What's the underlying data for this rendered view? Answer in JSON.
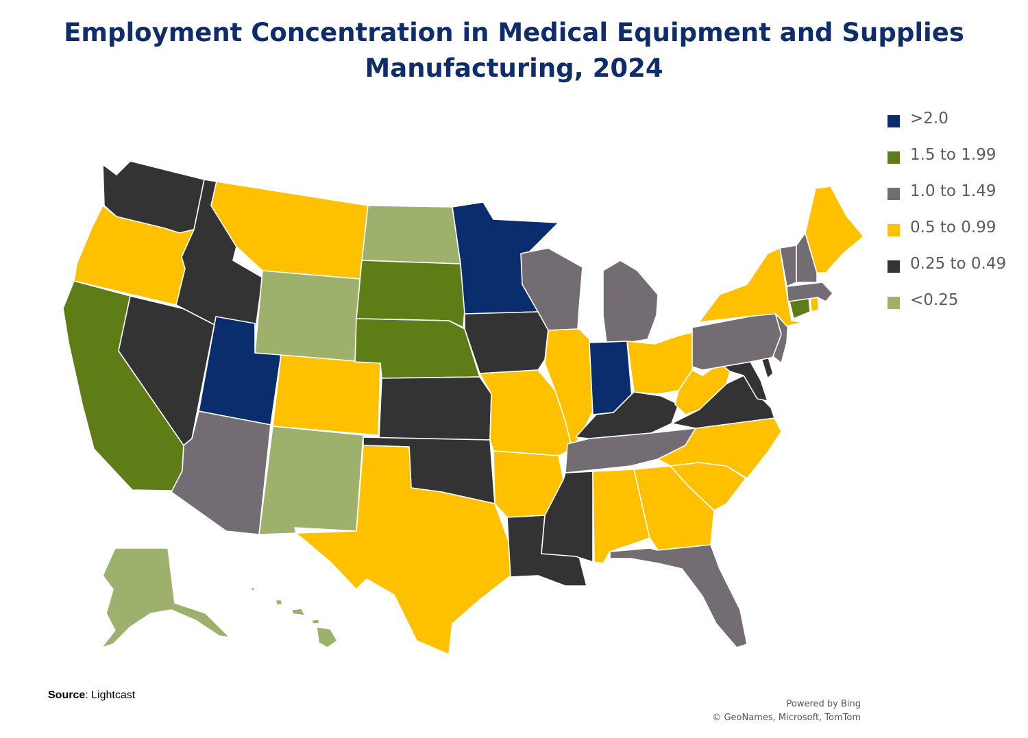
{
  "title_line1": "Employment Concentration in Medical Equipment and Supplies",
  "title_line2": "Manufacturing, 2024",
  "legend": [
    {
      "label": ">2.0",
      "color": "#0a2d6e",
      "category": "gt2"
    },
    {
      "label": "1.5 to 1.99",
      "color": "#5e7d17",
      "category": "c150"
    },
    {
      "label": "1.0 to 1.49",
      "color": "#736c72",
      "category": "c100"
    },
    {
      "label": "0.5 to 0.99",
      "color": "#ffc000",
      "category": "c050"
    },
    {
      "label": "0.25 to 0.49",
      "color": "#333333",
      "category": "c025"
    },
    {
      "label": "<0.25",
      "color": "#9db06c",
      "category": "lt025"
    }
  ],
  "states": [
    {
      "id": "WA",
      "category": "c025"
    },
    {
      "id": "OR",
      "category": "c050"
    },
    {
      "id": "CA",
      "category": "c150"
    },
    {
      "id": "NV",
      "category": "c025"
    },
    {
      "id": "ID",
      "category": "c025"
    },
    {
      "id": "MT",
      "category": "c050"
    },
    {
      "id": "WY",
      "category": "lt025"
    },
    {
      "id": "UT",
      "category": "gt2"
    },
    {
      "id": "AZ",
      "category": "c100"
    },
    {
      "id": "CO",
      "category": "c050"
    },
    {
      "id": "NM",
      "category": "lt025"
    },
    {
      "id": "ND",
      "category": "lt025"
    },
    {
      "id": "SD",
      "category": "c150"
    },
    {
      "id": "NE",
      "category": "c150"
    },
    {
      "id": "KS",
      "category": "c025"
    },
    {
      "id": "OK",
      "category": "c025"
    },
    {
      "id": "TX",
      "category": "c050"
    },
    {
      "id": "MN",
      "category": "gt2"
    },
    {
      "id": "IA",
      "category": "c025"
    },
    {
      "id": "MO",
      "category": "c050"
    },
    {
      "id": "AR",
      "category": "c050"
    },
    {
      "id": "LA",
      "category": "c025"
    },
    {
      "id": "WI",
      "category": "c100"
    },
    {
      "id": "IL",
      "category": "c050"
    },
    {
      "id": "MI",
      "category": "c100"
    },
    {
      "id": "IN",
      "category": "gt2"
    },
    {
      "id": "OH",
      "category": "c050"
    },
    {
      "id": "KY",
      "category": "c025"
    },
    {
      "id": "TN",
      "category": "c100"
    },
    {
      "id": "MS",
      "category": "c025"
    },
    {
      "id": "AL",
      "category": "c050"
    },
    {
      "id": "GA",
      "category": "c050"
    },
    {
      "id": "FL",
      "category": "c100"
    },
    {
      "id": "SC",
      "category": "c050"
    },
    {
      "id": "NC",
      "category": "c050"
    },
    {
      "id": "VA",
      "category": "c025"
    },
    {
      "id": "WV",
      "category": "c050"
    },
    {
      "id": "MD",
      "category": "c025"
    },
    {
      "id": "DE",
      "category": "c025"
    },
    {
      "id": "PA",
      "category": "c100"
    },
    {
      "id": "NJ",
      "category": "c100"
    },
    {
      "id": "NY",
      "category": "c050"
    },
    {
      "id": "CT",
      "category": "c150"
    },
    {
      "id": "RI",
      "category": "c050"
    },
    {
      "id": "MA",
      "category": "c100"
    },
    {
      "id": "VT",
      "category": "c100"
    },
    {
      "id": "NH",
      "category": "c100"
    },
    {
      "id": "ME",
      "category": "c050"
    },
    {
      "id": "AK",
      "category": "lt025"
    },
    {
      "id": "HI",
      "category": "lt025"
    }
  ],
  "source_label": "Source",
  "source_value": ": Lightcast",
  "attribution_line1": "Powered by Bing",
  "attribution_line2": "© GeoNames, Microsoft, TomTom"
}
